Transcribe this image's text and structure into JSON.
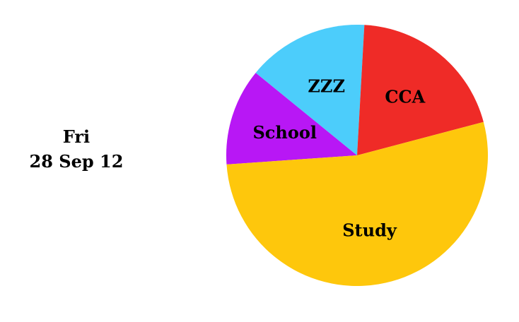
{
  "date": {
    "weekday": "Fri",
    "date": "28 Sep 12"
  },
  "chart_data": {
    "type": "pie",
    "title": "",
    "start_angle_deg": -184,
    "slices": [
      {
        "label": "School",
        "value": 12,
        "color": "#b817f5"
      },
      {
        "label": "ZZZ",
        "value": 15,
        "color": "#4ccdfb"
      },
      {
        "label": "CCA",
        "value": 20,
        "color": "#ef2b27"
      },
      {
        "label": "Study",
        "value": 53,
        "color": "#fec70c"
      }
    ]
  }
}
